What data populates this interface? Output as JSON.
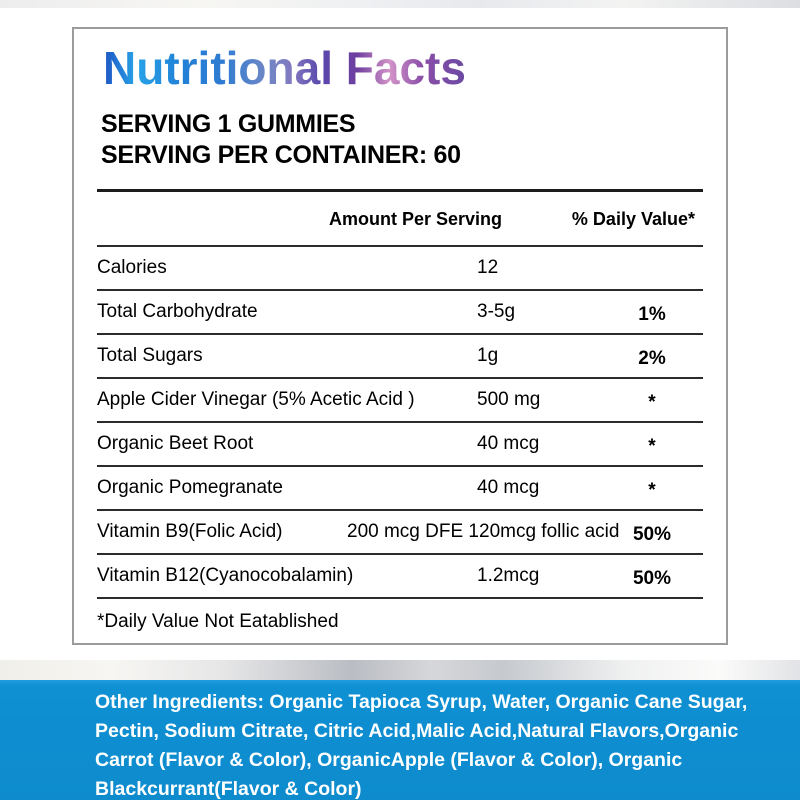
{
  "label": {
    "title": "Nutritional Facts",
    "serving_line1": "SERVING 1 GUMMIES",
    "serving_line2": "SERVING PER CONTAINER: 60",
    "columns": {
      "amount": "Amount Per Serving",
      "daily_value": "% Daily Value*"
    },
    "rows": [
      {
        "name": "Calories",
        "amount": "12",
        "dv": ""
      },
      {
        "name": "Total Carbohydrate",
        "amount": "3-5g",
        "dv": "1%"
      },
      {
        "name": "Total Sugars",
        "amount": "1g",
        "dv": "2%"
      },
      {
        "name": "Apple Cider Vinegar (5% Acetic Acid )",
        "amount": "500 mg",
        "dv": "*"
      },
      {
        "name": "Organic Beet Root",
        "amount": "40 mcg",
        "dv": "*"
      },
      {
        "name": "Organic Pomegranate",
        "amount": "40 mcg",
        "dv": "*"
      },
      {
        "name": "Vitamin B9(Folic Acid)",
        "amount": "200 mcg DFE 120mcg follic acid",
        "dv": "50%",
        "wide": true
      },
      {
        "name": "Vitamin B12(Cyanocobalamin)",
        "amount": "1.2mcg",
        "dv": "50%"
      }
    ],
    "footnote": "*Daily Value Not Eatablished"
  },
  "ingredients": {
    "lines": [
      "Other Ingredients: Organic Tapioca Syrup, Water, Organic Cane Sugar,",
      "Pectin, Sodium Citrate, Citric Acid,Malic Acid,Natural Flavors,Organic",
      "Carrot (Flavor & Color), OrganicApple (Flavor & Color), Organic",
      "Blackcurrant(Flavor & Color)"
    ]
  },
  "colors": {
    "panel_blue": "#0f90d3",
    "panel_text": "#ffffff",
    "text": "#000000",
    "border_gray": "#9b9b9b",
    "title_gradient": [
      "#1d53c3",
      "#28a3e8",
      "#2f7cd2",
      "#8379c0",
      "#6e3f9f",
      "#d293c8",
      "#6a4aa2"
    ]
  }
}
